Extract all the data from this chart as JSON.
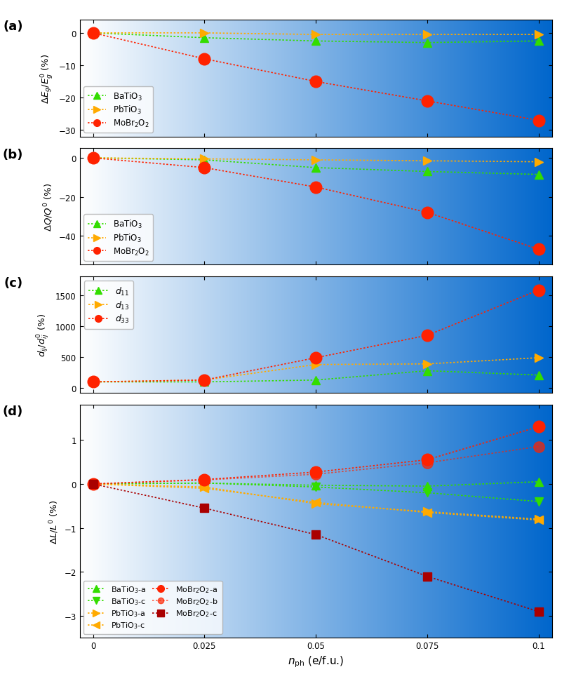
{
  "x": [
    0,
    0.025,
    0.05,
    0.075,
    0.1
  ],
  "panel_a": {
    "BaTiO3": [
      0,
      -1.5,
      -2.5,
      -3.0,
      -2.5
    ],
    "PbTiO3": [
      0,
      0.0,
      -0.5,
      -0.5,
      -0.5
    ],
    "MoBr2O2": [
      0,
      -8.0,
      -15.0,
      -21.0,
      -27.0
    ]
  },
  "panel_b": {
    "BaTiO3": [
      0,
      -1.0,
      -5.0,
      -7.0,
      -8.5
    ],
    "PbTiO3": [
      0,
      -0.5,
      -1.0,
      -1.5,
      -2.0
    ],
    "MoBr2O2": [
      0,
      -5.0,
      -15.0,
      -28.0,
      -47.0
    ]
  },
  "panel_c": {
    "d11": [
      100,
      100,
      130,
      280,
      210
    ],
    "d13": [
      100,
      130,
      380,
      390,
      490
    ],
    "d33": [
      100,
      130,
      490,
      850,
      1580
    ]
  },
  "panel_d": {
    "BaTiO3_a": [
      0,
      0.02,
      -0.03,
      -0.05,
      0.05
    ],
    "BaTiO3_c": [
      0,
      0.02,
      -0.07,
      -0.2,
      -0.4
    ],
    "PbTiO3_a": [
      0,
      -0.07,
      -0.45,
      -0.63,
      -0.8
    ],
    "PbTiO3_c": [
      0,
      -0.1,
      -0.42,
      -0.65,
      -0.82
    ],
    "MoBr2O2_a": [
      0,
      0.1,
      0.27,
      0.55,
      1.3
    ],
    "MoBr2O2_b": [
      0,
      0.09,
      0.22,
      0.48,
      0.85
    ],
    "MoBr2O2_c": [
      0,
      -0.55,
      -1.15,
      -2.1,
      -2.9
    ]
  },
  "bg_left": "#ffffff",
  "bg_right": "#0066cc",
  "green_color": "#33dd00",
  "orange_color": "#ffaa00",
  "red_color": "#ff2200",
  "dark_red_color": "#aa0000"
}
